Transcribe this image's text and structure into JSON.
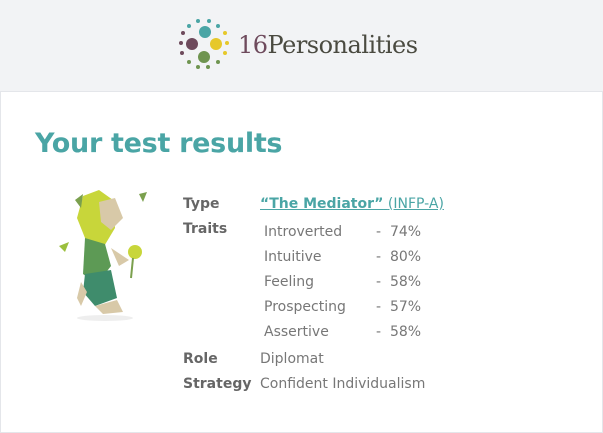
{
  "header": {
    "logo_number": "16",
    "logo_word": "Personalities"
  },
  "title": "Your test results",
  "results": {
    "type_label": "Type",
    "type_name": "“The Mediator”",
    "type_code": "(INFP-A)",
    "traits_label": "Traits",
    "traits": [
      {
        "name": "Introverted",
        "percent": "-  74%"
      },
      {
        "name": "Intuitive",
        "percent": "-  80%"
      },
      {
        "name": "Feeling",
        "percent": "-  58%"
      },
      {
        "name": "Prospecting",
        "percent": "-  57%"
      },
      {
        "name": "Assertive",
        "percent": "-  58%"
      }
    ],
    "role_label": "Role",
    "role": "Diplomat",
    "strategy_label": "Strategy",
    "strategy": "Confident Individualism"
  },
  "colors": {
    "accent": "#4aa5a5",
    "logo_purple": "#6e4a5c",
    "logo_yellow": "#e6c82a",
    "logo_green": "#6f9450"
  }
}
